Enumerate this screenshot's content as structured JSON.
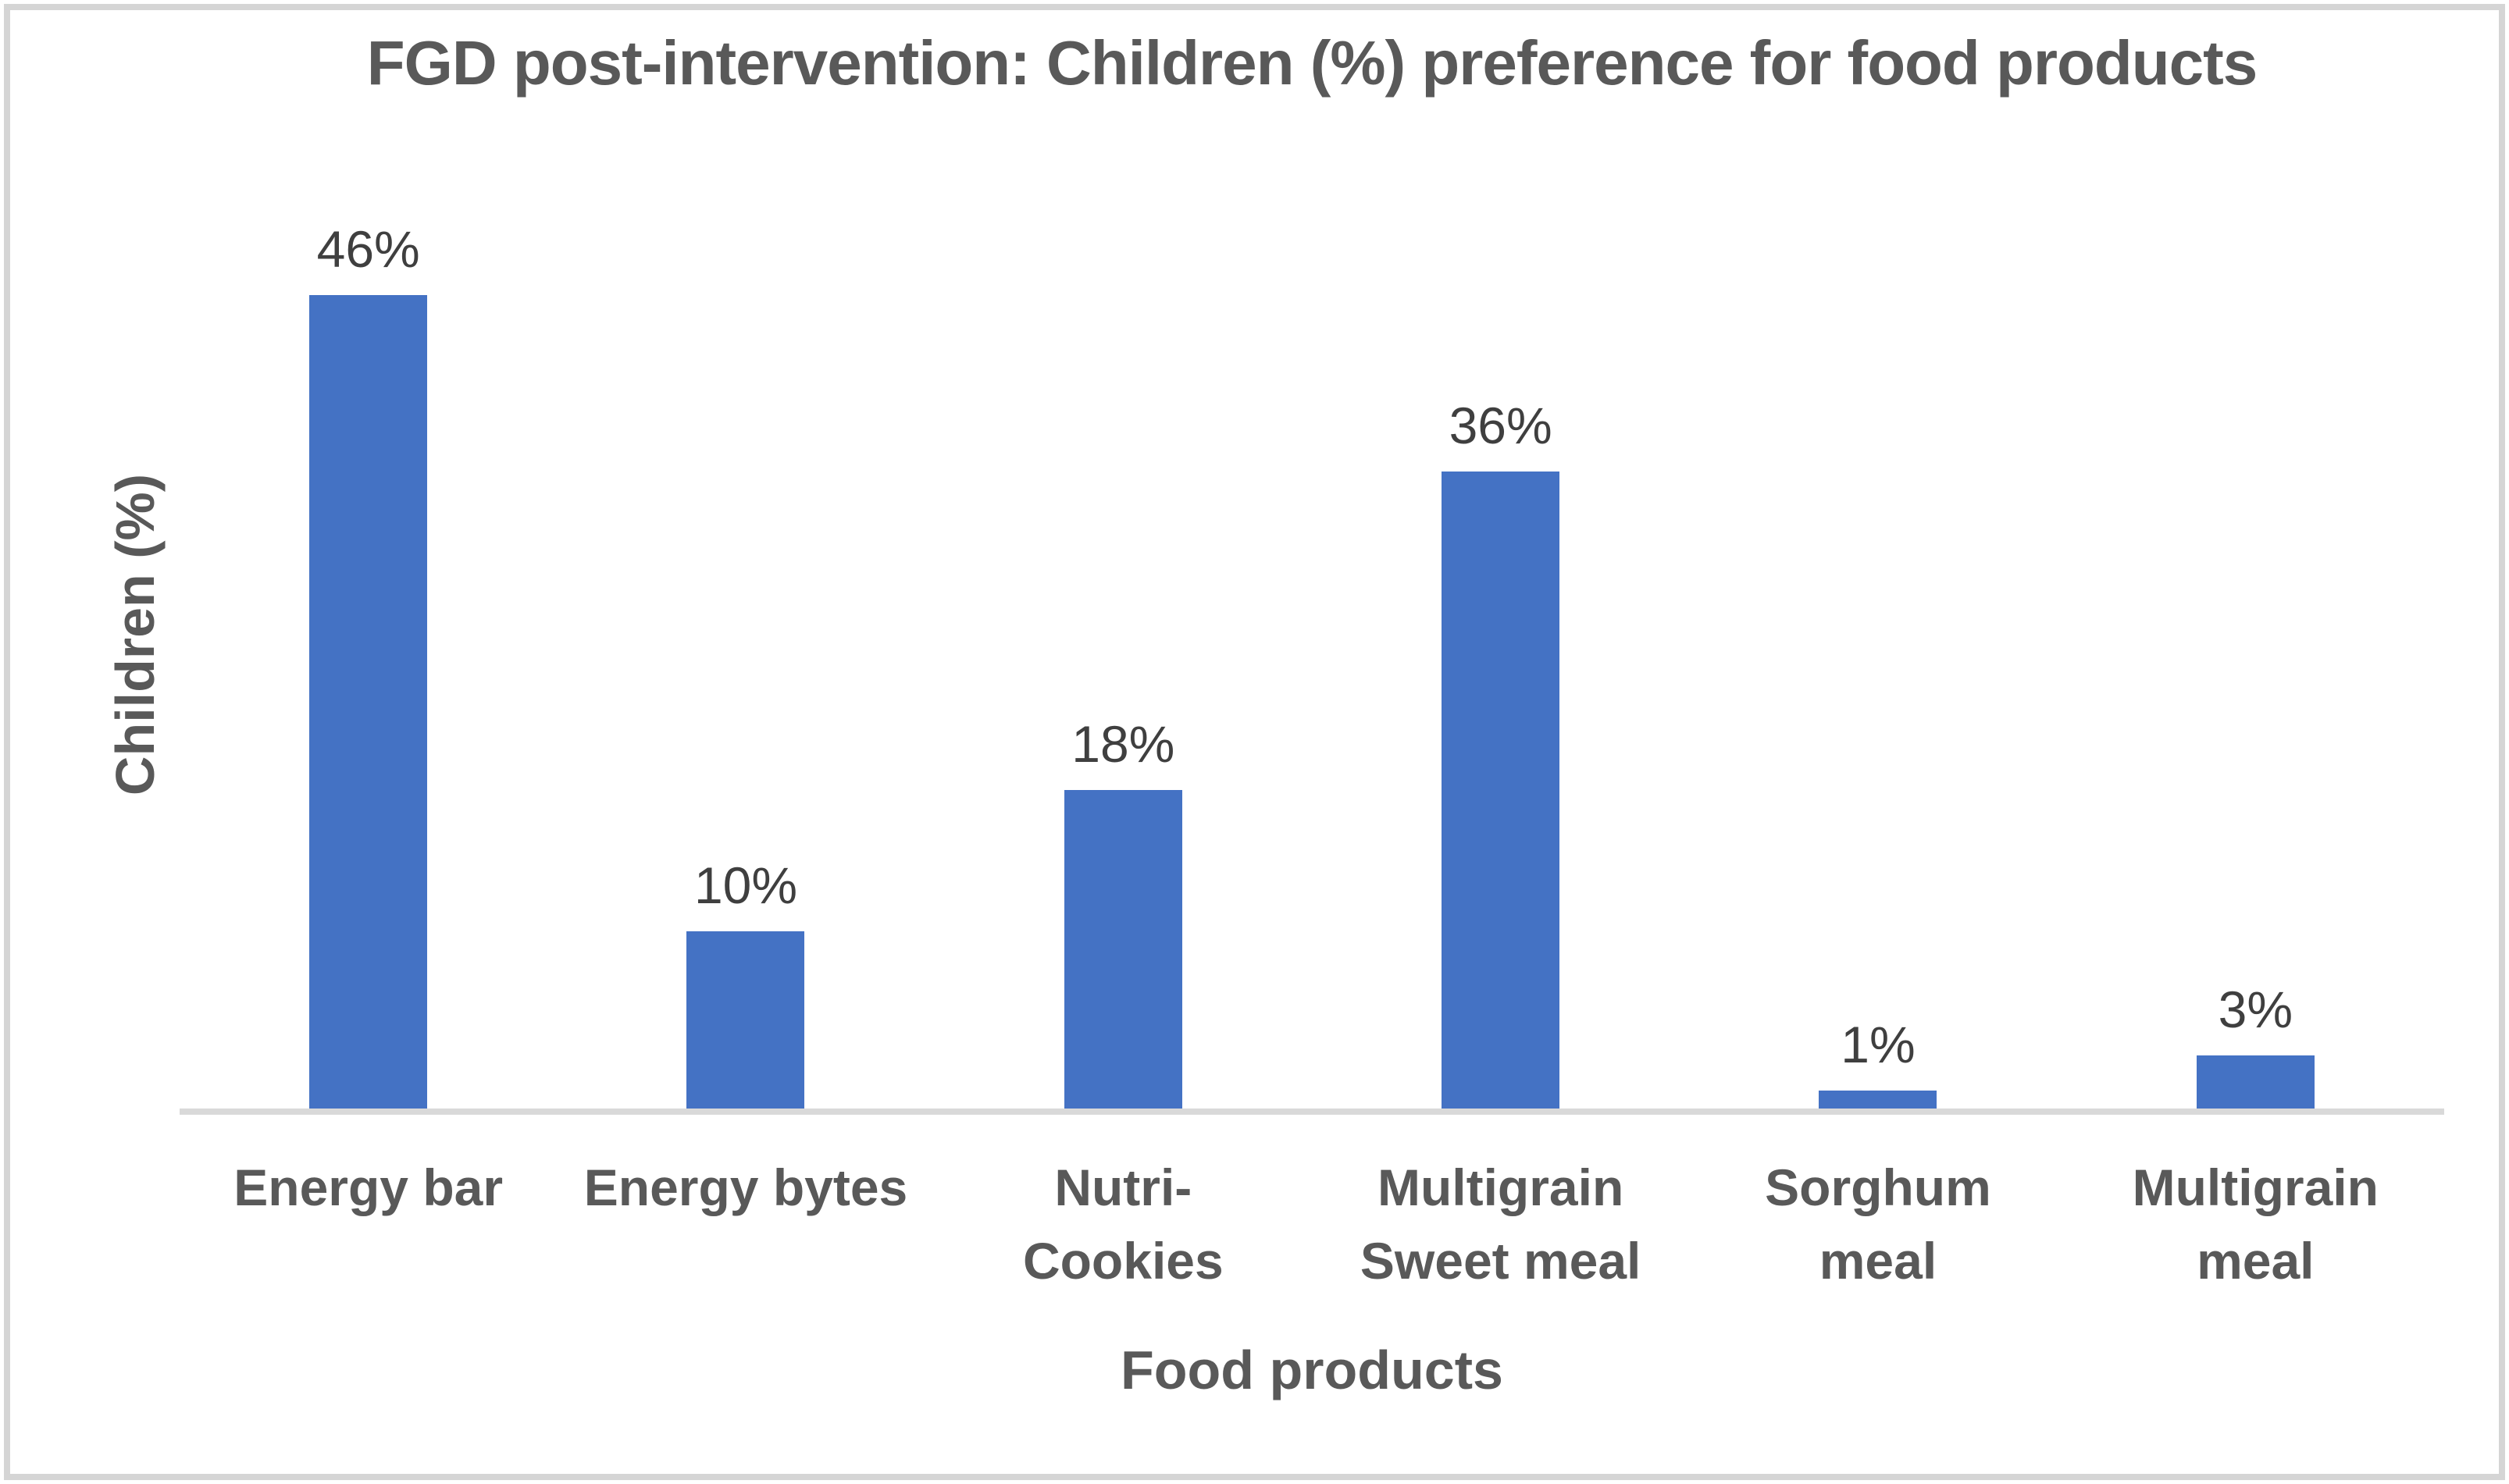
{
  "chart_data": {
    "type": "bar",
    "title": "FGD post-intervention: Children (%) preference for food products",
    "categories": [
      "Energy bar",
      "Energy bytes",
      "Nutri-Cookies",
      "Multigrain Sweet meal",
      "Sorghum meal",
      "Multigrain meal"
    ],
    "values": [
      46,
      10,
      18,
      36,
      1,
      3
    ],
    "data_labels": [
      "46%",
      "10%",
      "18%",
      "36%",
      "1%",
      "3%"
    ],
    "xlabel": "Food products",
    "ylabel": "Children (%)",
    "ylim": [
      0,
      50
    ],
    "grid": false,
    "legend": false,
    "y_axis_tick_labels_visible": false,
    "bar_color": "#4472C4",
    "baseline_color": "#D9D9D9",
    "frame_border_color": "#D5D5D5",
    "title_color": "#595959",
    "axis_title_color": "#595959",
    "category_label_color": "#595959",
    "data_label_color": "#3F3F3F"
  }
}
